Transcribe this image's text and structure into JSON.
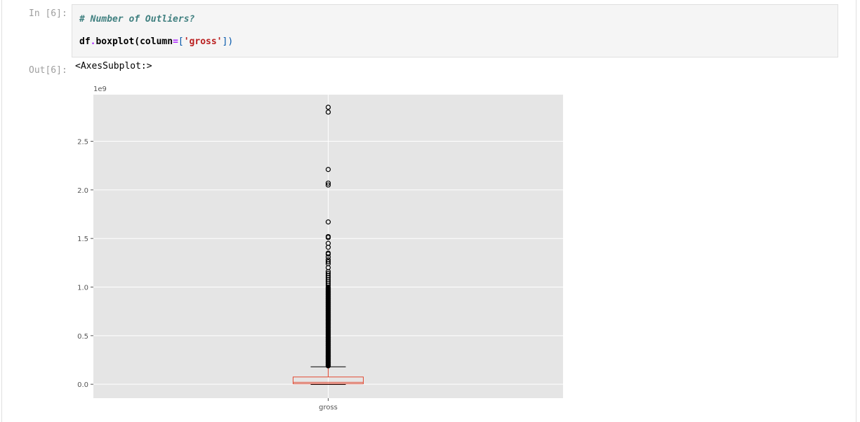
{
  "cell": {
    "in_prompt": "In [6]:",
    "out_prompt": "Out[6]:",
    "code_comment": "# Number of Outliers?",
    "code_line": {
      "obj": "df",
      "dot": ".",
      "func": "boxplot(column",
      "op": "=",
      "open": "[",
      "str": "'gross'",
      "close": "])"
    },
    "output_text": "<AxesSubplot:>"
  },
  "colors": {
    "plot_bg": "#e5e5e5",
    "grid": "#ffffff",
    "box": "#e24a33",
    "whisker": "#000000"
  },
  "chart_data": {
    "type": "box",
    "categories": [
      "gross"
    ],
    "y_multiplier_label": "1e9",
    "yticks": [
      0.0,
      0.5,
      1.0,
      1.5,
      2.0,
      2.5
    ],
    "ytick_labels": [
      "0.0",
      "0.5",
      "1.0",
      "1.5",
      "2.0",
      "2.5"
    ],
    "ylim": [
      -0.143,
      2.98
    ],
    "grid": true,
    "box": {
      "min": 0.0,
      "q1": 0.005,
      "median": 0.02,
      "q3": 0.075,
      "whisker_high": 0.18
    },
    "outliers": [
      2.85,
      2.8,
      2.21,
      2.07,
      2.05,
      1.67,
      1.52,
      1.51,
      1.45,
      1.41,
      1.35,
      1.34,
      1.31,
      1.28,
      1.26,
      1.24,
      1.2,
      1.16,
      1.14,
      1.12,
      1.1,
      1.08,
      1.06,
      1.04,
      1.02,
      1.0,
      0.98,
      0.96,
      0.94,
      0.92,
      0.9,
      0.88,
      0.86,
      0.84,
      0.82,
      0.8,
      0.78,
      0.76,
      0.74,
      0.72,
      0.7,
      0.68,
      0.66,
      0.64,
      0.62,
      0.6,
      0.58,
      0.56,
      0.54,
      0.52,
      0.5,
      0.48,
      0.46,
      0.44,
      0.42,
      0.4,
      0.38,
      0.36,
      0.34,
      0.32,
      0.3,
      0.28,
      0.26,
      0.24,
      0.22,
      0.2,
      0.19
    ]
  }
}
